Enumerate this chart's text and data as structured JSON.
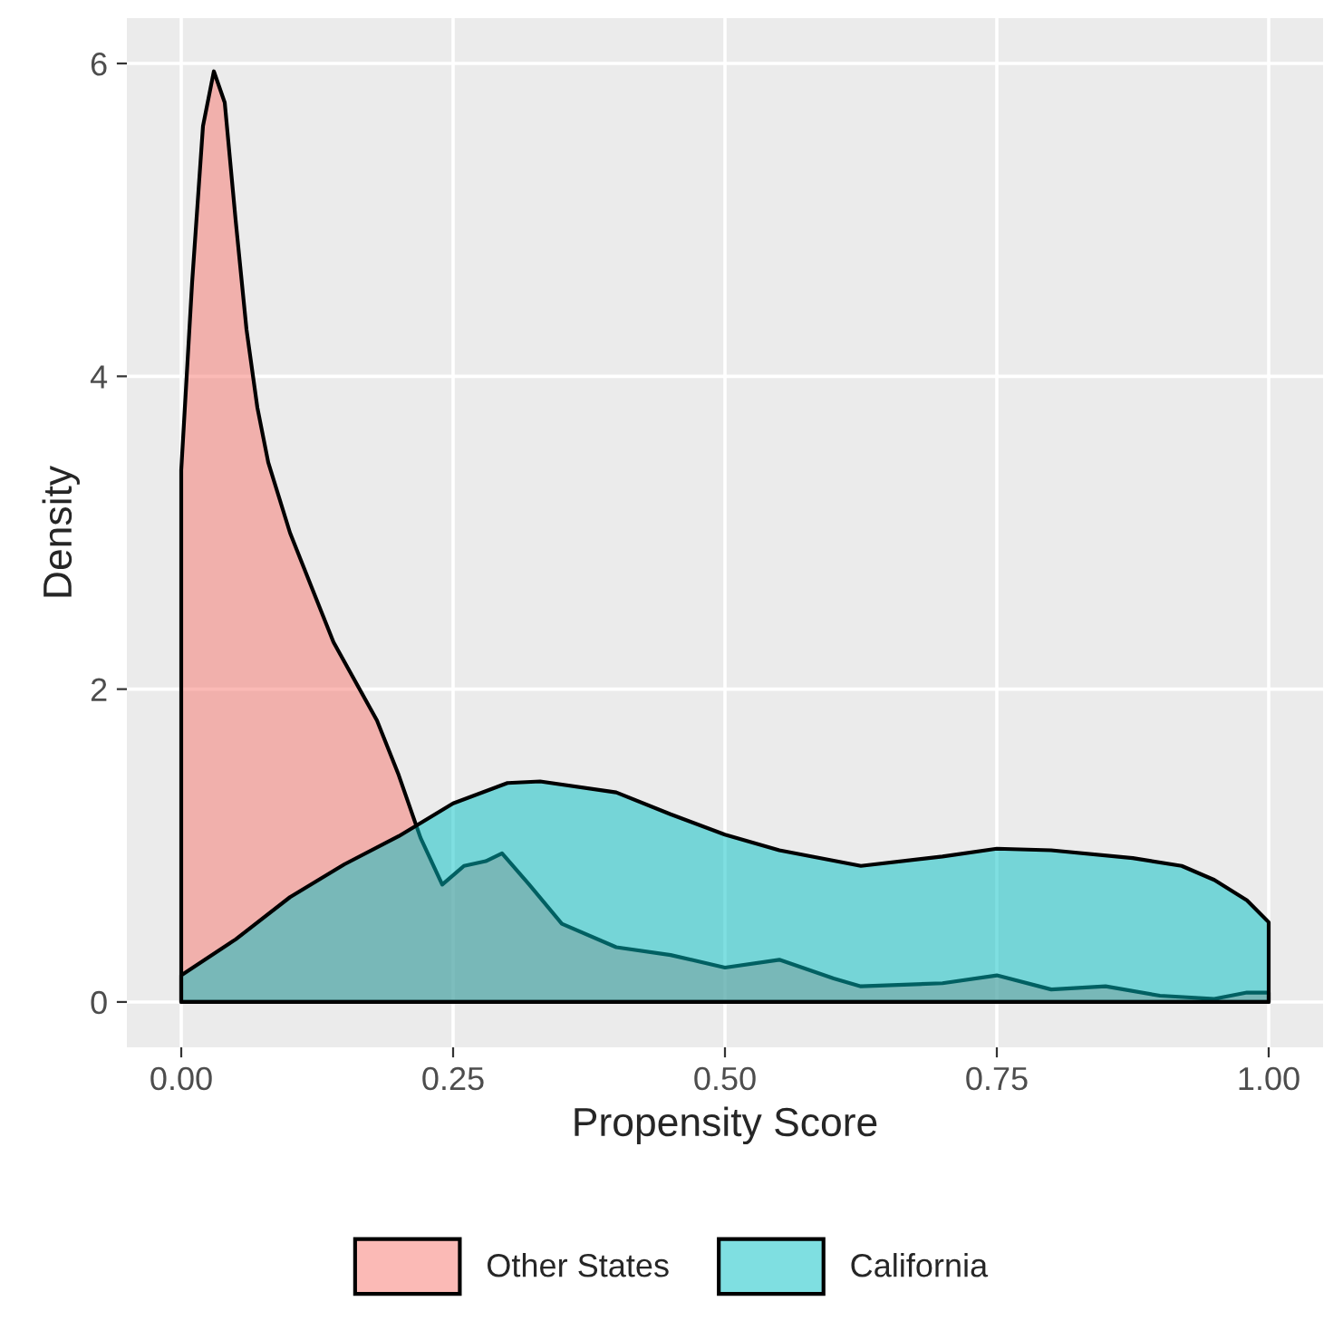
{
  "chart_data": {
    "type": "area",
    "xlabel": "Propensity Score",
    "ylabel": "Density",
    "xlim": [
      -0.05,
      1.05
    ],
    "xticks": [
      {
        "value": 0,
        "label": "0.00"
      },
      {
        "value": 0.25,
        "label": "0.25"
      },
      {
        "value": 0.5,
        "label": "0.50"
      },
      {
        "value": 0.75,
        "label": "0.75"
      },
      {
        "value": 1,
        "label": "1.00"
      }
    ],
    "ylim": [
      -0.29,
      6.29
    ],
    "yticks": [
      0,
      2,
      4,
      6
    ],
    "grid": true,
    "legend": "bottom",
    "series": [
      {
        "name": "Other States",
        "color": "#f8766d",
        "x": [
          0,
          0.01,
          0.02,
          0.03,
          0.04,
          0.05,
          0.06,
          0.07,
          0.08,
          0.1,
          0.12,
          0.14,
          0.16,
          0.18,
          0.2,
          0.22,
          0.24,
          0.26,
          0.28,
          0.295,
          0.32,
          0.35,
          0.4,
          0.45,
          0.5,
          0.55,
          0.6,
          0.625,
          0.7,
          0.75,
          0.8,
          0.85,
          0.9,
          0.95,
          0.98,
          1.0
        ],
        "values": [
          3.4,
          4.6,
          5.6,
          5.95,
          5.75,
          5.0,
          4.3,
          3.8,
          3.45,
          3.0,
          2.65,
          2.3,
          2.05,
          1.8,
          1.45,
          1.05,
          0.75,
          0.87,
          0.9,
          0.95,
          0.75,
          0.5,
          0.35,
          0.3,
          0.22,
          0.27,
          0.15,
          0.1,
          0.12,
          0.17,
          0.08,
          0.1,
          0.04,
          0.02,
          0.06,
          0.06
        ]
      },
      {
        "name": "California",
        "color": "#00bfc4",
        "x": [
          0,
          0.05,
          0.1,
          0.15,
          0.2,
          0.25,
          0.3,
          0.33,
          0.4,
          0.45,
          0.5,
          0.55,
          0.625,
          0.7,
          0.75,
          0.8,
          0.875,
          0.92,
          0.95,
          0.98,
          1.0
        ],
        "values": [
          0.17,
          0.4,
          0.67,
          0.88,
          1.06,
          1.27,
          1.4,
          1.41,
          1.34,
          1.2,
          1.07,
          0.97,
          0.87,
          0.93,
          0.98,
          0.97,
          0.92,
          0.87,
          0.78,
          0.65,
          0.51
        ]
      }
    ]
  }
}
